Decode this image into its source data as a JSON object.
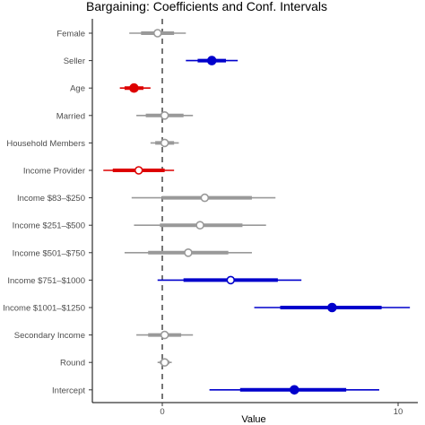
{
  "chart_data": {
    "type": "coefficient_plot",
    "title": "Bargaining: Coefficients and Conf. Intervals",
    "xlabel": "Value",
    "ylabel": "",
    "xlim": [
      -2.5,
      10.5
    ],
    "x_ticks": [
      0,
      10
    ],
    "x_tick_labels": [
      "0",
      "10"
    ],
    "reference_line": 0,
    "grid": false,
    "colors": {
      "insignificant": "#999999",
      "positive": "#0000cc",
      "negative": "#dd0000",
      "reference_line": "#666666"
    },
    "legend": "none",
    "rows": [
      {
        "label": "Female",
        "estimate": -0.2,
        "ci90": [
          -0.9,
          0.5
        ],
        "ci95": [
          -1.4,
          1.0
        ],
        "significance": "insignificant",
        "marker": "open"
      },
      {
        "label": "Seller",
        "estimate": 2.1,
        "ci90": [
          1.5,
          2.7
        ],
        "ci95": [
          1.0,
          3.2
        ],
        "significance": "positive",
        "marker": "filled"
      },
      {
        "label": "Age",
        "estimate": -1.2,
        "ci90": [
          -1.6,
          -0.8
        ],
        "ci95": [
          -1.8,
          -0.5
        ],
        "significance": "negative",
        "marker": "filled"
      },
      {
        "label": "Married",
        "estimate": 0.1,
        "ci90": [
          -0.7,
          0.9
        ],
        "ci95": [
          -1.1,
          1.3
        ],
        "significance": "insignificant",
        "marker": "open"
      },
      {
        "label": "Household Members",
        "estimate": 0.1,
        "ci90": [
          -0.3,
          0.5
        ],
        "ci95": [
          -0.5,
          0.7
        ],
        "significance": "insignificant",
        "marker": "open"
      },
      {
        "label": "Income Provider",
        "estimate": -1.0,
        "ci90": [
          -2.1,
          0.1
        ],
        "ci95": [
          -2.5,
          0.5
        ],
        "significance": "negative",
        "marker": "open"
      },
      {
        "label": "Income $83–$250",
        "estimate": 1.8,
        "ci90": [
          0.0,
          3.8
        ],
        "ci95": [
          -1.3,
          4.8
        ],
        "significance": "insignificant",
        "marker": "open"
      },
      {
        "label": "Income $251–$500",
        "estimate": 1.6,
        "ci90": [
          -0.1,
          3.4
        ],
        "ci95": [
          -1.2,
          4.4
        ],
        "significance": "insignificant",
        "marker": "open"
      },
      {
        "label": "Income $501–$750",
        "estimate": 1.1,
        "ci90": [
          -0.6,
          2.8
        ],
        "ci95": [
          -1.6,
          3.8
        ],
        "significance": "insignificant",
        "marker": "open"
      },
      {
        "label": "Income $751–$1000",
        "estimate": 2.9,
        "ci90": [
          0.9,
          4.9
        ],
        "ci95": [
          -0.2,
          5.9
        ],
        "significance": "positive",
        "marker": "open"
      },
      {
        "label": "Income $1001–$1250",
        "estimate": 7.2,
        "ci90": [
          5.0,
          9.3
        ],
        "ci95": [
          3.9,
          10.5
        ],
        "significance": "positive",
        "marker": "filled"
      },
      {
        "label": "Secondary Income",
        "estimate": 0.1,
        "ci90": [
          -0.6,
          0.8
        ],
        "ci95": [
          -1.1,
          1.3
        ],
        "significance": "insignificant",
        "marker": "open"
      },
      {
        "label": "Round",
        "estimate": 0.1,
        "ci90": [
          -0.1,
          0.3
        ],
        "ci95": [
          -0.2,
          0.4
        ],
        "significance": "insignificant",
        "marker": "open"
      },
      {
        "label": "Intercept",
        "estimate": 5.6,
        "ci90": [
          3.3,
          7.8
        ],
        "ci95": [
          2.0,
          9.2
        ],
        "significance": "positive",
        "marker": "filled"
      }
    ]
  }
}
